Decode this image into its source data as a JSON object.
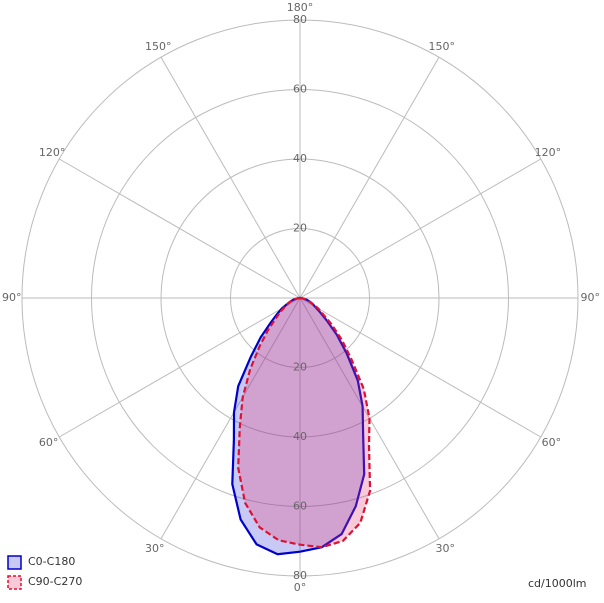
{
  "chart_data": {
    "type": "polar",
    "unit_label": "cd/1000lm",
    "x": [
      -90,
      -85,
      -80,
      -75,
      -70,
      -65,
      -60,
      -55,
      -50,
      -45,
      -40,
      -35,
      -30,
      -25,
      -20,
      -15,
      -10,
      -5,
      0,
      5,
      10,
      15,
      20,
      25,
      30,
      35,
      40,
      45,
      50,
      55,
      60,
      65,
      70,
      75,
      80,
      85,
      90
    ],
    "series": [
      {
        "name": "C0-C180",
        "color": "#0000cc",
        "fill": "rgba(60,60,220,0.28)",
        "dashed": false,
        "values": [
          0,
          0.5,
          1,
          2,
          3,
          4,
          6,
          8,
          11,
          16,
          22,
          31,
          38,
          45,
          57,
          66,
          72,
          74,
          73,
          72,
          69,
          62,
          54,
          43,
          36,
          29,
          21,
          15,
          10,
          7,
          5,
          4,
          3,
          2,
          1,
          0.5,
          0
        ]
      },
      {
        "name": "C90-C270",
        "color": "#dd1133",
        "fill": "rgba(230,60,110,0.28)",
        "dashed": true,
        "values": [
          0,
          0.5,
          1,
          2,
          3,
          4,
          5,
          7,
          9,
          13,
          18,
          25,
          33,
          41,
          52,
          61,
          67,
          70,
          71,
          72,
          71,
          67,
          59,
          47,
          40,
          32,
          23,
          17,
          12,
          8,
          6,
          4,
          3,
          2,
          1,
          0.5,
          0
        ]
      }
    ],
    "rlim": [
      0,
      80
    ],
    "rticks": [
      20,
      40,
      60,
      80
    ],
    "angle_ticks": [
      {
        "value": -150,
        "label": "150°"
      },
      {
        "value": -120,
        "label": "120°"
      },
      {
        "value": -90,
        "label": "90°"
      },
      {
        "value": -60,
        "label": "60°"
      },
      {
        "value": -30,
        "label": "30°"
      },
      {
        "value": 0,
        "label": "0°"
      },
      {
        "value": 30,
        "label": "30°"
      },
      {
        "value": 60,
        "label": "60°"
      },
      {
        "value": 90,
        "label": "90°"
      },
      {
        "value": 120,
        "label": "120°"
      },
      {
        "value": 150,
        "label": "150°"
      },
      {
        "value": 180,
        "label": "180°"
      }
    ]
  }
}
